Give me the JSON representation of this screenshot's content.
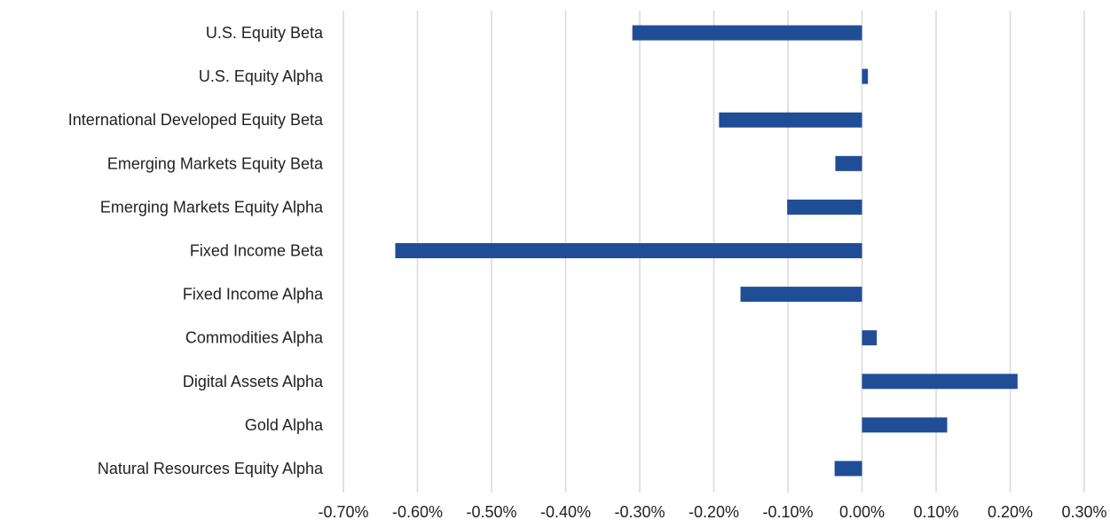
{
  "chart_data": {
    "type": "bar",
    "orientation": "horizontal",
    "categories": [
      "U.S. Equity Beta",
      "U.S. Equity Alpha",
      "International Developed Equity Beta",
      "Emerging Markets Equity Beta",
      "Emerging Markets Equity Alpha",
      "Fixed Income Beta",
      "Fixed Income Alpha",
      "Commodities Alpha",
      "Digital Assets Alpha",
      "Gold Alpha",
      "Natural Resources Equity Alpha"
    ],
    "values": [
      -0.31,
      0.008,
      -0.193,
      -0.036,
      -0.101,
      -0.63,
      -0.164,
      0.02,
      0.21,
      0.115,
      -0.037
    ],
    "value_unit": "%",
    "xlim": [
      -0.7,
      0.3
    ],
    "x_ticks": [
      "-0.70%",
      "-0.60%",
      "-0.50%",
      "-0.40%",
      "-0.30%",
      "-0.20%",
      "-0.10%",
      "0.00%",
      "0.10%",
      "0.20%",
      "0.30%"
    ],
    "title": "",
    "xlabel": "",
    "ylabel": "",
    "grid": "vertical",
    "legend": "none",
    "bar_color": "#1f4e96"
  }
}
